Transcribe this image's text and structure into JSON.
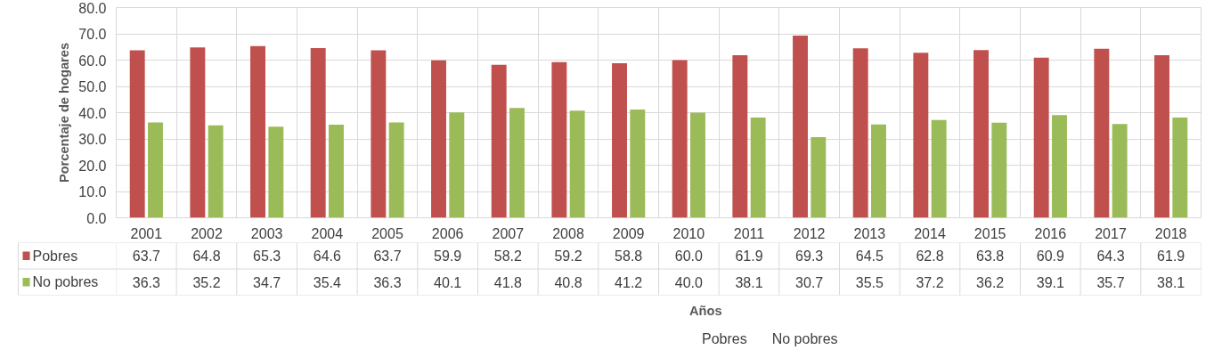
{
  "chart_data": {
    "type": "bar",
    "xlabel": "Años",
    "ylabel": "Porcentaje de hogares",
    "categories": [
      "2001",
      "2002",
      "2003",
      "2004",
      "2005",
      "2006",
      "2007",
      "2008",
      "2009",
      "2010",
      "2011",
      "2012",
      "2013",
      "2014",
      "2015",
      "2016",
      "2017",
      "2018"
    ],
    "series": [
      {
        "name": "Pobres",
        "color": "#c0504d",
        "values": [
          63.7,
          64.8,
          65.3,
          64.6,
          63.7,
          59.9,
          58.2,
          59.2,
          58.8,
          60.0,
          61.9,
          69.3,
          64.5,
          62.8,
          63.8,
          60.9,
          64.3,
          61.9
        ],
        "value_labels": [
          "63.7",
          "64.8",
          "65.3",
          "64.6",
          "63.7",
          "59.9",
          "58.2",
          "59.2",
          "58.8",
          "60.0",
          "61.9",
          "69.3",
          "64.5",
          "62.8",
          "63.8",
          "60.9",
          "64.3",
          "61.9"
        ]
      },
      {
        "name": "No pobres",
        "color": "#9bbb59",
        "values": [
          36.3,
          35.2,
          34.7,
          35.4,
          36.3,
          40.1,
          41.8,
          40.8,
          41.2,
          40.0,
          38.1,
          30.7,
          35.5,
          37.2,
          36.2,
          39.1,
          35.7,
          38.1
        ],
        "value_labels": [
          "36.3",
          "35.2",
          "34.7",
          "35.4",
          "36.3",
          "40.1",
          "41.8",
          "40.8",
          "41.2",
          "40.0",
          "38.1",
          "30.7",
          "35.5",
          "37.2",
          "36.2",
          "39.1",
          "35.7",
          "38.1"
        ]
      }
    ],
    "ylim": [
      0,
      80
    ],
    "yticks": [
      {
        "value": 0,
        "label": "0.0"
      },
      {
        "value": 10,
        "label": "10.0"
      },
      {
        "value": 20,
        "label": "20.0"
      },
      {
        "value": 30,
        "label": "30.0"
      },
      {
        "value": 40,
        "label": "40.0"
      },
      {
        "value": 50,
        "label": "50.0"
      },
      {
        "value": 60,
        "label": "60.0"
      },
      {
        "value": 70,
        "label": "70.0"
      },
      {
        "value": 80,
        "label": "80.0"
      }
    ],
    "grid": true,
    "legend": "bottom"
  }
}
